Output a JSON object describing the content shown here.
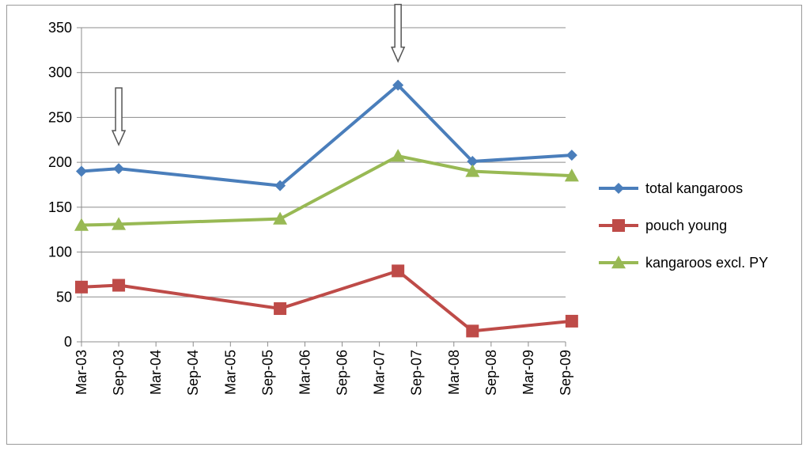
{
  "chart_data": {
    "type": "line",
    "y_ticks": [
      0,
      50,
      100,
      150,
      200,
      250,
      300,
      350
    ],
    "ylim": [
      0,
      350
    ],
    "x_ticks": [
      "Mar-03",
      "Sep-03",
      "Mar-04",
      "Sep-04",
      "Mar-05",
      "Sep-05",
      "Mar-06",
      "Sep-06",
      "Mar-07",
      "Sep-07",
      "Mar-08",
      "Sep-08",
      "Mar-09",
      "Sep-09"
    ],
    "grid": "horizontal",
    "legend_position": "right",
    "series": [
      {
        "name": "total kangaroos",
        "color": "#4a7ebb",
        "marker": "diamond",
        "points": [
          {
            "x": "Mar-03",
            "y": 190
          },
          {
            "x": "Sep-03",
            "y": 193
          },
          {
            "x": "Nov-05",
            "y": 174
          },
          {
            "x": "Jun-07",
            "y": 286
          },
          {
            "x": "Jun-08",
            "y": 201
          },
          {
            "x": "Oct-09",
            "y": 208
          }
        ]
      },
      {
        "name": "pouch young",
        "color": "#be4b48",
        "marker": "square",
        "points": [
          {
            "x": "Mar-03",
            "y": 61
          },
          {
            "x": "Sep-03",
            "y": 63
          },
          {
            "x": "Nov-05",
            "y": 37
          },
          {
            "x": "Jun-07",
            "y": 79
          },
          {
            "x": "Jun-08",
            "y": 12
          },
          {
            "x": "Oct-09",
            "y": 23
          }
        ]
      },
      {
        "name": "kangaroos excl. PY",
        "color": "#98b954",
        "marker": "triangle",
        "points": [
          {
            "x": "Mar-03",
            "y": 130
          },
          {
            "x": "Sep-03",
            "y": 131
          },
          {
            "x": "Nov-05",
            "y": 137
          },
          {
            "x": "Jun-07",
            "y": 207
          },
          {
            "x": "Jun-08",
            "y": 190
          },
          {
            "x": "Oct-09",
            "y": 185
          }
        ]
      }
    ],
    "annotations": [
      {
        "type": "down-arrow",
        "at": "Sep-03"
      },
      {
        "type": "down-arrow",
        "at": "Jun-07"
      }
    ]
  }
}
